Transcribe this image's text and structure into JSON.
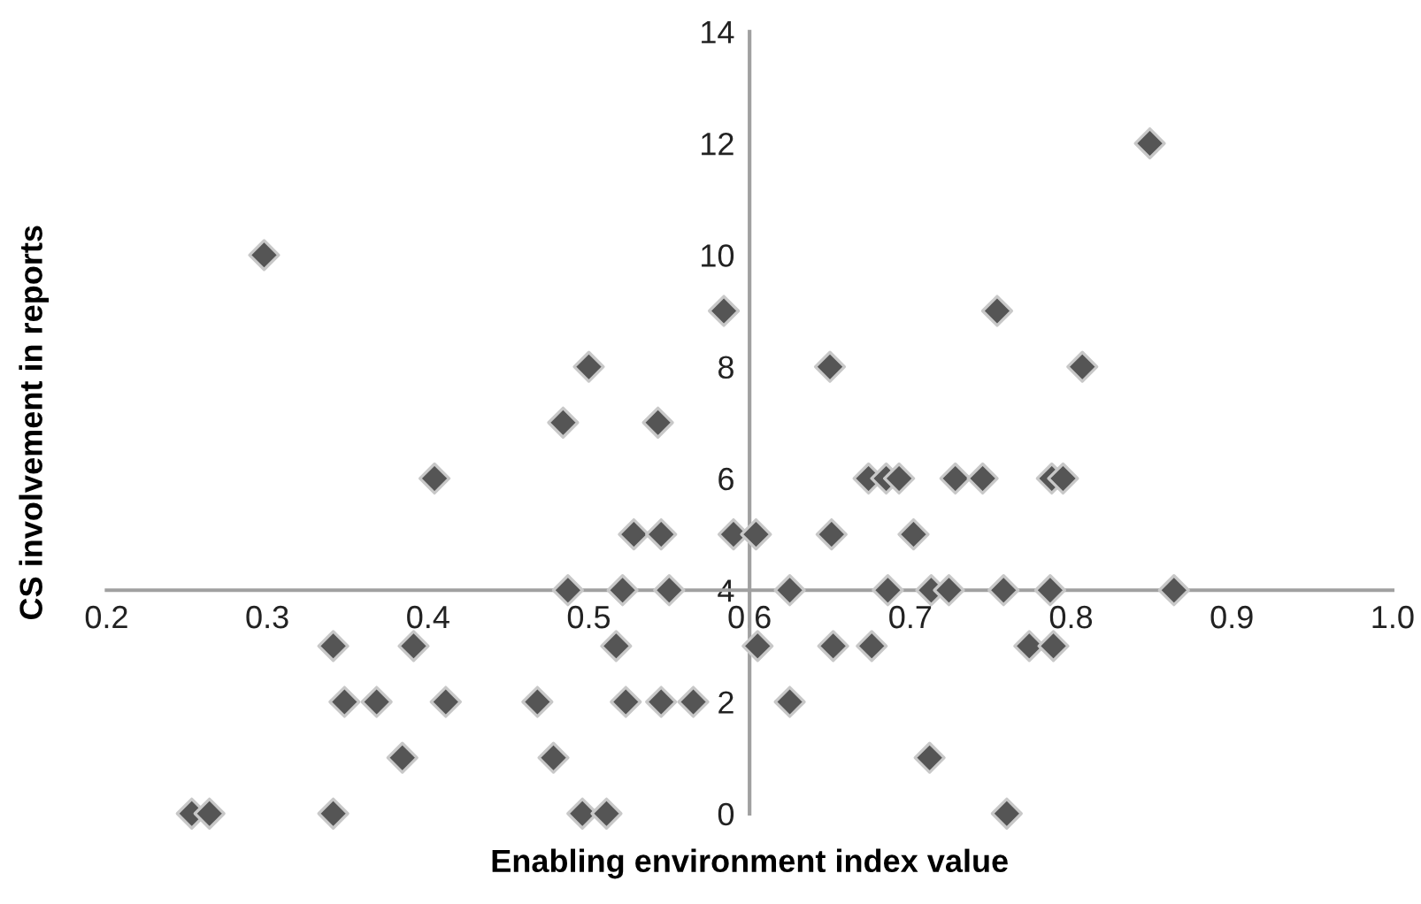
{
  "chart_data": {
    "type": "scatter",
    "xlabel": "Enabling environment index value",
    "ylabel": "CS involvement in reports",
    "xlim": [
      0.2,
      1.0
    ],
    "xticks": [
      {
        "value": 0.2,
        "label": "0.2"
      },
      {
        "value": 0.3,
        "label": "0.3"
      },
      {
        "value": 0.4,
        "label": "0.4"
      },
      {
        "value": 0.5,
        "label": "0.5"
      },
      {
        "value": 0.6,
        "label": "0.6"
      },
      {
        "value": 0.7,
        "label": "0.7"
      },
      {
        "value": 0.8,
        "label": "0.8"
      },
      {
        "value": 0.9,
        "label": "0.9"
      },
      {
        "value": 1.0,
        "label": "1.0"
      }
    ],
    "ylim": [
      0,
      14
    ],
    "yticks": [
      0,
      2,
      4,
      6,
      8,
      10,
      12,
      14
    ],
    "grid": false,
    "legend": false,
    "marker": "diamond",
    "series": [
      {
        "color": "#555555",
        "x": [
          0.253,
          0.264,
          0.341,
          0.496,
          0.511,
          0.76,
          0.384,
          0.478,
          0.712,
          0.348,
          0.368,
          0.411,
          0.468,
          0.523,
          0.545,
          0.565,
          0.625,
          0.341,
          0.391,
          0.517,
          0.605,
          0.652,
          0.676,
          0.774,
          0.789,
          0.487,
          0.521,
          0.55,
          0.625,
          0.686,
          0.713,
          0.724,
          0.758,
          0.787,
          0.864,
          0.528,
          0.545,
          0.59,
          0.604,
          0.651,
          0.702,
          0.404,
          0.674,
          0.685,
          0.693,
          0.728,
          0.745,
          0.788,
          0.795,
          0.484,
          0.543,
          0.5,
          0.65,
          0.807,
          0.584,
          0.754,
          0.298,
          0.849
        ],
        "values": [
          0,
          0,
          0,
          0,
          0,
          0,
          1,
          1,
          1,
          2,
          2,
          2,
          2,
          2,
          2,
          2,
          2,
          3,
          3,
          3,
          3,
          3,
          3,
          3,
          3,
          4,
          4,
          4,
          4,
          4,
          4,
          4,
          4,
          4,
          4,
          5,
          5,
          5,
          5,
          5,
          5,
          6,
          6,
          6,
          6,
          6,
          6,
          6,
          6,
          7,
          7,
          8,
          8,
          8,
          9,
          9,
          10,
          12
        ]
      }
    ]
  }
}
